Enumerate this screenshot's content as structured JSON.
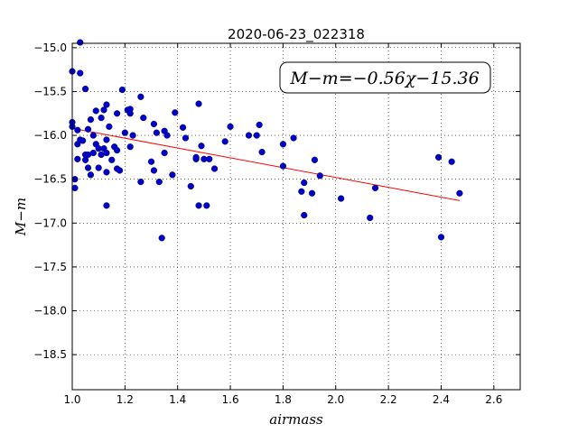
{
  "chart_data": {
    "type": "scatter",
    "title": "2020-06-23_022318",
    "xlabel": "airmass",
    "ylabel": "M−m",
    "xlim": [
      1.0,
      2.7
    ],
    "ylim": [
      -18.9,
      -14.95
    ],
    "y_inverted": true,
    "grid": true,
    "grid_style": "dotted",
    "x_ticks": [
      1.0,
      1.2,
      1.4,
      1.6,
      1.8,
      2.0,
      2.2,
      2.4,
      2.6
    ],
    "x_tick_labels": [
      "1.0",
      "1.2",
      "1.4",
      "1.6",
      "1.8",
      "2.0",
      "2.2",
      "2.4",
      "2.6"
    ],
    "y_ticks": [
      -15.0,
      -15.5,
      -16.0,
      -16.5,
      -17.0,
      -17.5,
      -18.0,
      -18.5
    ],
    "y_tick_labels": [
      "−15.0",
      "−15.5",
      "−16.0",
      "−16.5",
      "−17.0",
      "−17.5",
      "−18.0",
      "−18.5"
    ],
    "annotation": "M−m=−0.56χ−15.36",
    "fit_line": {
      "slope": -0.56,
      "intercept": -15.36,
      "x_range": [
        1.0,
        2.47
      ],
      "color": "#ff0000"
    },
    "series": [
      {
        "color": "#0000cc",
        "points": [
          [
            1.0,
            -15.27
          ],
          [
            1.01,
            -16.5
          ],
          [
            1.01,
            -16.6
          ],
          [
            1.0,
            -15.85
          ],
          [
            1.0,
            -15.9
          ],
          [
            1.02,
            -15.94
          ],
          [
            1.02,
            -16.1
          ],
          [
            1.02,
            -16.27
          ],
          [
            1.03,
            -16.05
          ],
          [
            1.03,
            -14.94
          ],
          [
            1.03,
            -15.29
          ],
          [
            1.04,
            -16.06
          ],
          [
            1.05,
            -15.47
          ],
          [
            1.05,
            -16.22
          ],
          [
            1.05,
            -16.28
          ],
          [
            1.06,
            -16.37
          ],
          [
            1.06,
            -15.93
          ],
          [
            1.06,
            -16.22
          ],
          [
            1.07,
            -16.45
          ],
          [
            1.07,
            -15.82
          ],
          [
            1.08,
            -16.0
          ],
          [
            1.08,
            -16.2
          ],
          [
            1.09,
            -15.72
          ],
          [
            1.09,
            -16.1
          ],
          [
            1.1,
            -16.15
          ],
          [
            1.1,
            -16.37
          ],
          [
            1.11,
            -16.22
          ],
          [
            1.11,
            -15.8
          ],
          [
            1.12,
            -16.15
          ],
          [
            1.12,
            -15.71
          ],
          [
            1.13,
            -16.05
          ],
          [
            1.13,
            -16.2
          ],
          [
            1.13,
            -15.65
          ],
          [
            1.13,
            -16.42
          ],
          [
            1.13,
            -16.8
          ],
          [
            1.14,
            -15.9
          ],
          [
            1.15,
            -16.28
          ],
          [
            1.16,
            -16.13
          ],
          [
            1.17,
            -16.17
          ],
          [
            1.17,
            -16.38
          ],
          [
            1.17,
            -15.75
          ],
          [
            1.18,
            -16.4
          ],
          [
            1.19,
            -15.48
          ],
          [
            1.2,
            -15.97
          ],
          [
            1.21,
            -15.71
          ],
          [
            1.22,
            -15.7
          ],
          [
            1.22,
            -15.75
          ],
          [
            1.22,
            -16.13
          ],
          [
            1.23,
            -16.0
          ],
          [
            1.26,
            -15.56
          ],
          [
            1.26,
            -16.53
          ],
          [
            1.27,
            -15.8
          ],
          [
            1.3,
            -16.3
          ],
          [
            1.31,
            -15.87
          ],
          [
            1.31,
            -16.4
          ],
          [
            1.32,
            -15.97
          ],
          [
            1.33,
            -16.53
          ],
          [
            1.34,
            -17.17
          ],
          [
            1.35,
            -16.2
          ],
          [
            1.35,
            -15.95
          ],
          [
            1.36,
            -16.0
          ],
          [
            1.38,
            -16.45
          ],
          [
            1.39,
            -15.74
          ],
          [
            1.42,
            -15.91
          ],
          [
            1.43,
            -16.03
          ],
          [
            1.45,
            -16.58
          ],
          [
            1.47,
            -16.27
          ],
          [
            1.47,
            -16.25
          ],
          [
            1.48,
            -16.8
          ],
          [
            1.48,
            -15.64
          ],
          [
            1.49,
            -16.12
          ],
          [
            1.5,
            -16.27
          ],
          [
            1.51,
            -16.8
          ],
          [
            1.52,
            -16.27
          ],
          [
            1.54,
            -16.38
          ],
          [
            1.58,
            -16.07
          ],
          [
            1.6,
            -15.9
          ],
          [
            1.67,
            -16.0
          ],
          [
            1.7,
            -16.0
          ],
          [
            1.71,
            -15.88
          ],
          [
            1.72,
            -16.19
          ],
          [
            1.8,
            -16.1
          ],
          [
            1.8,
            -16.35
          ],
          [
            1.84,
            -16.03
          ],
          [
            1.87,
            -16.64
          ],
          [
            1.88,
            -16.54
          ],
          [
            1.88,
            -16.91
          ],
          [
            1.91,
            -16.66
          ],
          [
            1.92,
            -16.28
          ],
          [
            1.94,
            -16.46
          ],
          [
            2.02,
            -16.72
          ],
          [
            2.13,
            -16.94
          ],
          [
            2.15,
            -16.6
          ],
          [
            2.39,
            -16.25
          ],
          [
            2.4,
            -17.16
          ],
          [
            2.44,
            -16.3
          ],
          [
            2.47,
            -16.66
          ]
        ]
      }
    ]
  }
}
